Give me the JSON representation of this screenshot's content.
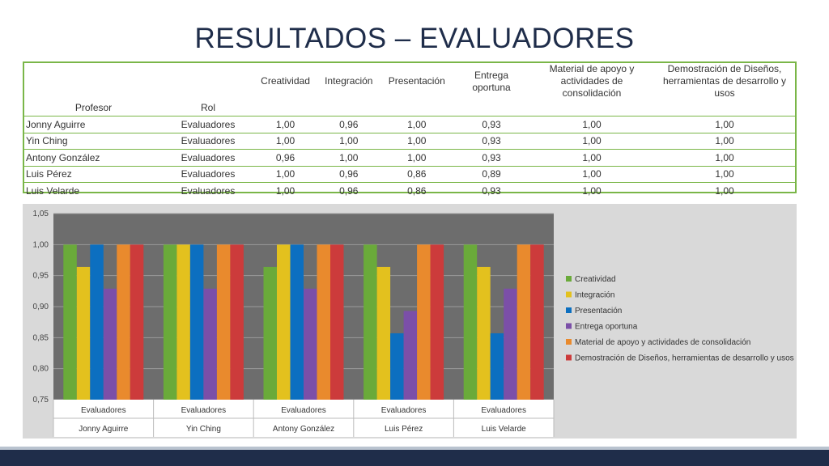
{
  "slide_title": "RESULTADOS – EVALUADORES",
  "table": {
    "col_profesor": "Profesor",
    "col_rol": "Rol",
    "criteria": [
      "Creatividad",
      "Integración",
      "Presentación",
      "Entrega oportuna",
      "Material de apoyo y actividades de consolidación",
      "Demostración de Diseños, herramientas de desarrollo y usos"
    ],
    "rows": [
      {
        "profesor": "Jonny Aguirre",
        "rol": "Evaluadores",
        "values": [
          "1,00",
          "0,96",
          "1,00",
          "0,93",
          "1,00",
          "1,00"
        ]
      },
      {
        "profesor": "Yin Ching",
        "rol": "Evaluadores",
        "values": [
          "1,00",
          "1,00",
          "1,00",
          "0,93",
          "1,00",
          "1,00"
        ]
      },
      {
        "profesor": "Antony González",
        "rol": "Evaluadores",
        "values": [
          "0,96",
          "1,00",
          "1,00",
          "0,93",
          "1,00",
          "1,00"
        ]
      },
      {
        "profesor": "Luis Pérez",
        "rol": "Evaluadores",
        "values": [
          "1,00",
          "0,96",
          "0,86",
          "0,89",
          "1,00",
          "1,00"
        ]
      },
      {
        "profesor": "Luis Velarde",
        "rol": "Evaluadores",
        "values": [
          "1,00",
          "0,96",
          "0,86",
          "0,93",
          "1,00",
          "1,00"
        ]
      }
    ]
  },
  "chart_data": {
    "type": "bar",
    "categories": [
      "Jonny Aguirre",
      "Yin Ching",
      "Antony González",
      "Luis Pérez",
      "Luis Velarde"
    ],
    "category_sublabel": "Evaluadores",
    "ylim": [
      0.75,
      1.05
    ],
    "yticks": [
      0.75,
      0.8,
      0.85,
      0.9,
      0.95,
      1.0,
      1.05
    ],
    "ytick_labels": [
      "0,75",
      "0,80",
      "0,85",
      "0,90",
      "0,95",
      "1,00",
      "1,05"
    ],
    "grid": true,
    "legend_position": "right",
    "series": [
      {
        "name": "Creatividad",
        "color": "#6aaa3a",
        "values": [
          1.0,
          1.0,
          0.964,
          1.0,
          1.0
        ]
      },
      {
        "name": "Integración",
        "color": "#e3c11e",
        "values": [
          0.964,
          1.0,
          1.0,
          0.964,
          0.964
        ]
      },
      {
        "name": "Presentación",
        "color": "#0c6fc0",
        "values": [
          1.0,
          1.0,
          1.0,
          0.857,
          0.857
        ]
      },
      {
        "name": "Entrega oportuna",
        "color": "#7b4fa8",
        "values": [
          0.929,
          0.929,
          0.929,
          0.893,
          0.929
        ]
      },
      {
        "name": "Material de apoyo y actividades de consolidación",
        "color": "#e98a2d",
        "values": [
          1.0,
          1.0,
          1.0,
          1.0,
          1.0
        ]
      },
      {
        "name": "Demostración de Diseños, herramientas de desarrollo y usos",
        "color": "#cc3b3b",
        "values": [
          1.0,
          1.0,
          1.0,
          1.0,
          1.0
        ]
      }
    ]
  }
}
